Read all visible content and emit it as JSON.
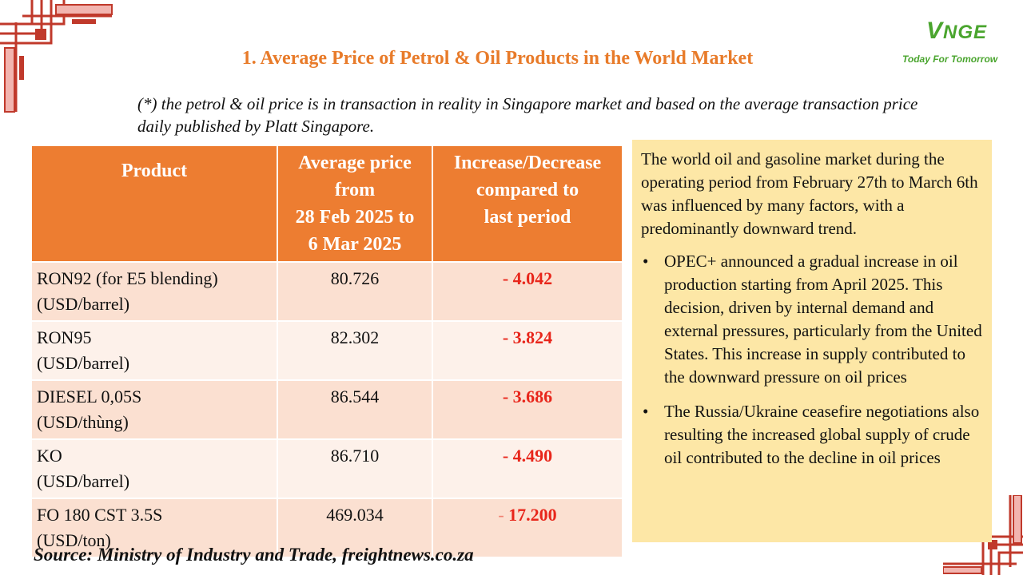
{
  "logo": {
    "mark": "NGE",
    "mark_v": "V",
    "tagline": "Today For Tomorrow"
  },
  "colors": {
    "accent": "#ed7d31",
    "title": "#e87b2a",
    "negative": "#e8261b",
    "panel": "#fde7a6",
    "logo_green": "#4aa52e"
  },
  "title": "1. Average Price of Petrol & Oil Products in the World Market",
  "note": "(*) the petrol & oil price is in transaction in reality in Singapore market and based on the average transaction price daily published by Platt Singapore.",
  "table": {
    "headers": {
      "product": "Product",
      "average": [
        "Average price",
        "from",
        "28 Feb 2025 to",
        "6 Mar 2025"
      ],
      "change": [
        "Increase/Decrease",
        "compared to",
        "last period"
      ]
    },
    "rows": [
      {
        "product": "RON92 (for E5 blending)",
        "unit": "(USD/barrel)",
        "average": "80.726",
        "sign": "-",
        "change": "4.042"
      },
      {
        "product": "RON95",
        "unit": "(USD/barrel)",
        "average": "82.302",
        "sign": "-",
        "change": "3.824"
      },
      {
        "product": "DIESEL 0,05S",
        "unit": "(USD/thùng)",
        "average": "86.544",
        "sign": "-",
        "change": "3.686"
      },
      {
        "product": "KO",
        "unit": "(USD/barrel)",
        "average": "86.710",
        "sign": "-",
        "change": "4.490"
      },
      {
        "product": "FO 180 CST 3.5S",
        "unit": "(USD/ton)",
        "average": "469.034",
        "sign": "-",
        "change": "17.200"
      }
    ]
  },
  "source": "Source: Ministry of Industry and Trade, freightnews.co.za",
  "panel": {
    "intro": "The world oil and gasoline market during the operating period from February 27th to March 6th was influenced by many factors, with a predominantly downward trend.",
    "bullets": [
      "OPEC+ announced a gradual increase in oil production starting from April 2025. This decision, driven by internal demand and external pressures, particularly from the United States. This increase in supply contributed to the downward pressure on oil prices",
      "The Russia/Ukraine ceasefire negotiations also resulting the increased global supply of crude oil contributed to the decline in oil prices"
    ],
    "bullet_symbol": "•"
  }
}
